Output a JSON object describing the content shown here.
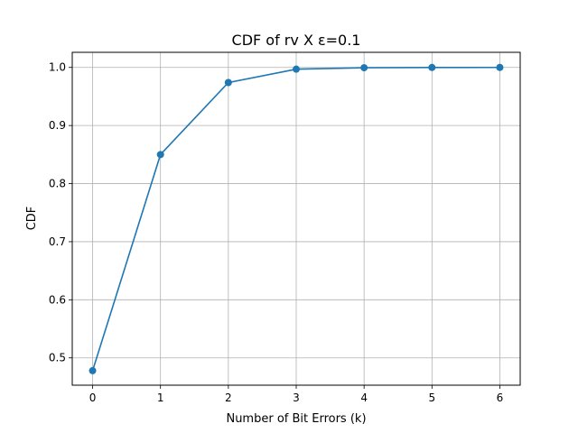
{
  "chart_data": {
    "type": "line",
    "title": "CDF of rv X ε=0.1",
    "xlabel": "Number of Bit Errors (k)",
    "ylabel": "CDF",
    "x": [
      0,
      1,
      2,
      3,
      4,
      5,
      6
    ],
    "series": [
      {
        "values": [
          0.478,
          0.85,
          0.974,
          0.997,
          0.9995,
          0.99995,
          1.0
        ],
        "color": "#1f77b4",
        "marker": "circle"
      }
    ],
    "xlim": [
      -0.3,
      6.3
    ],
    "ylim": [
      0.453,
      1.026
    ],
    "xticks": [
      "0",
      "1",
      "2",
      "3",
      "4",
      "5",
      "6"
    ],
    "yticks": [
      "0.5",
      "0.6",
      "0.7",
      "0.8",
      "0.9",
      "1.0"
    ],
    "grid": true
  }
}
